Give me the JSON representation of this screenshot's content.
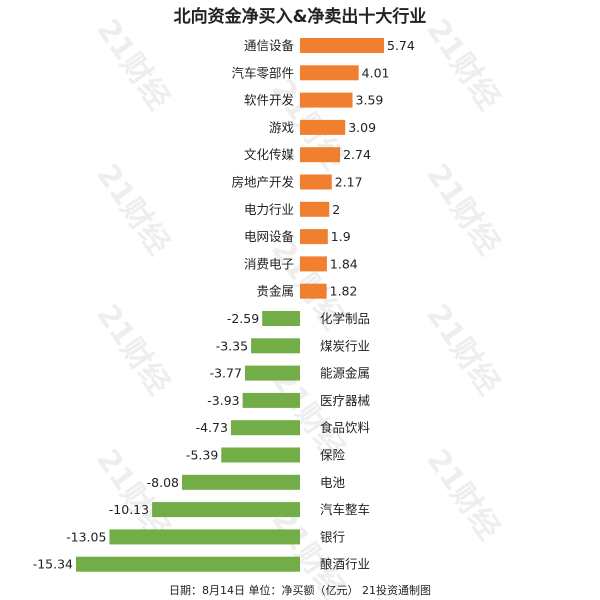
{
  "chart_data": {
    "type": "bar",
    "orientation": "horizontal",
    "title": "北向资金净买入&净卖出十大行业",
    "categories": [
      "通信设备",
      "汽车零部件",
      "软件开发",
      "游戏",
      "文化传媒",
      "房地产开发",
      "电力行业",
      "电网设备",
      "消费电子",
      "贵金属",
      "化学制品",
      "煤炭行业",
      "能源金属",
      "医疗器械",
      "食品饮料",
      "保险",
      "电池",
      "汽车整车",
      "银行",
      "酿酒行业"
    ],
    "values": [
      5.74,
      4.01,
      3.59,
      3.09,
      2.74,
      2.17,
      2,
      1.9,
      1.84,
      1.82,
      -2.59,
      -3.35,
      -3.77,
      -3.93,
      -4.73,
      -5.39,
      -8.08,
      -10.13,
      -13.05,
      -15.34
    ],
    "value_labels": [
      "5.74",
      "4.01",
      "3.59",
      "3.09",
      "2.74",
      "2.17",
      "2",
      "1.9",
      "1.84",
      "1.82",
      "-2.59",
      "-3.35",
      "-3.77",
      "-3.93",
      "-4.73",
      "-5.39",
      "-8.08",
      "-10.13",
      "-13.05",
      "-15.34"
    ],
    "xlim": [
      -15.34,
      5.74
    ],
    "colors": {
      "positive": "#f07f2f",
      "negative": "#72ad47"
    },
    "footnote": "日期：8月14日 单位：净买额（亿元） 21投资通制图",
    "watermark": "21财经",
    "grid": false,
    "legend": "none"
  }
}
